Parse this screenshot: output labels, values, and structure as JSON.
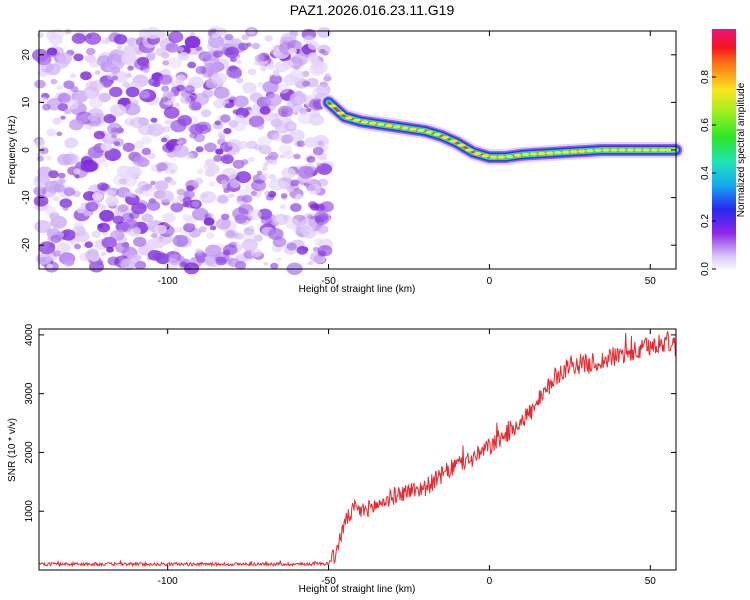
{
  "title": "PAZ1.2026.016.23.11.G19",
  "chart_data": [
    {
      "type": "heatmap",
      "xlabel": "Height of straight line (km)",
      "ylabel": "Frequency (Hz)",
      "xlim": [
        -140,
        58
      ],
      "ylim": [
        -25,
        25
      ],
      "x_ticks": [
        -100,
        -50,
        0,
        50
      ],
      "y_ticks": [
        -20,
        -10,
        0,
        10,
        20
      ],
      "colorbar": {
        "label": "Normalized spectral amplitude",
        "range": [
          0,
          1
        ],
        "ticks": [
          "0.0",
          "0.2",
          "0.4",
          "0.6",
          "0.8"
        ],
        "colormap": "rainbow"
      },
      "noise_region_x": [
        -140,
        -50
      ],
      "ridge": {
        "x": [
          -50,
          -45,
          -40,
          -35,
          -30,
          -25,
          -20,
          -15,
          -10,
          -5,
          0,
          5,
          10,
          15,
          20,
          25,
          30,
          35,
          40,
          45,
          50,
          55,
          58
        ],
        "frequency": [
          10,
          7,
          6,
          5.5,
          5,
          4.5,
          4,
          3,
          1.5,
          -0.5,
          -1.5,
          -1.5,
          -1,
          -0.8,
          -0.6,
          -0.4,
          -0.2,
          0,
          0,
          0,
          0,
          0,
          0
        ]
      }
    },
    {
      "type": "line",
      "xlabel": "Height of straight line (km)",
      "ylabel": "SNR (10 * v/v)",
      "xlim": [
        -140,
        58
      ],
      "ylim": [
        0,
        4100
      ],
      "x_ticks": [
        -100,
        -50,
        0,
        50
      ],
      "y_ticks": [
        1000,
        2000,
        3000,
        4000
      ],
      "color": "#e8282d",
      "series": [
        {
          "x": [
            -140,
            -120,
            -100,
            -80,
            -60,
            -50,
            -48,
            -45,
            -42,
            -40,
            -35,
            -30,
            -25,
            -20,
            -15,
            -10,
            -5,
            0,
            5,
            10,
            15,
            20,
            25,
            30,
            35,
            40,
            45,
            50,
            55,
            58
          ],
          "values": [
            100,
            100,
            100,
            100,
            100,
            110,
            250,
            800,
            1050,
            1000,
            1100,
            1250,
            1350,
            1400,
            1600,
            1800,
            1900,
            2100,
            2300,
            2550,
            2800,
            3250,
            3500,
            3500,
            3550,
            3650,
            3700,
            3800,
            3900,
            3800
          ]
        }
      ]
    }
  ]
}
